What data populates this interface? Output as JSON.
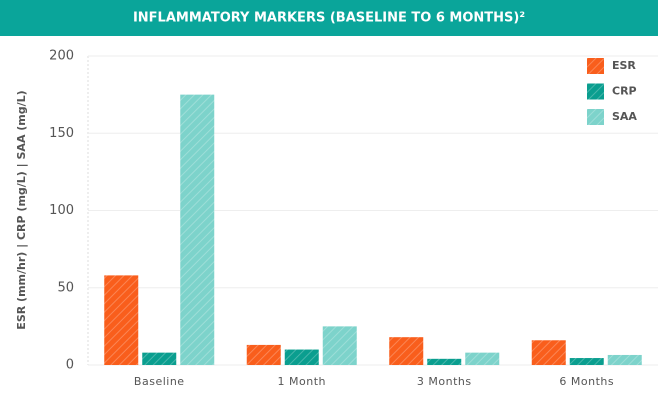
{
  "chart_data": {
    "type": "bar",
    "title": "INFLAMMATORY MARKERS (BASELINE TO 6 MONTHS)²",
    "y_label": "ESR (mm/hr)  |  CRP (mg/L)  |  SAA (mg/L)",
    "categories": [
      "Baseline",
      "1 Month",
      "3 Months",
      "6 Months"
    ],
    "series": [
      {
        "name": "ESR",
        "color": "#f95e1c",
        "values": [
          58,
          13,
          18,
          16
        ]
      },
      {
        "name": "CRP",
        "color": "#0a9e8f",
        "values": [
          8,
          10,
          4,
          4.5
        ]
      },
      {
        "name": "SAA",
        "color": "#7dd3cb",
        "values": [
          175,
          25,
          8,
          6.5
        ]
      }
    ],
    "ylim": [
      0,
      200
    ],
    "yticks": [
      0,
      50,
      100,
      150,
      200
    ],
    "grid": true,
    "legend": "top-right",
    "title_color": "#0aa59a"
  }
}
